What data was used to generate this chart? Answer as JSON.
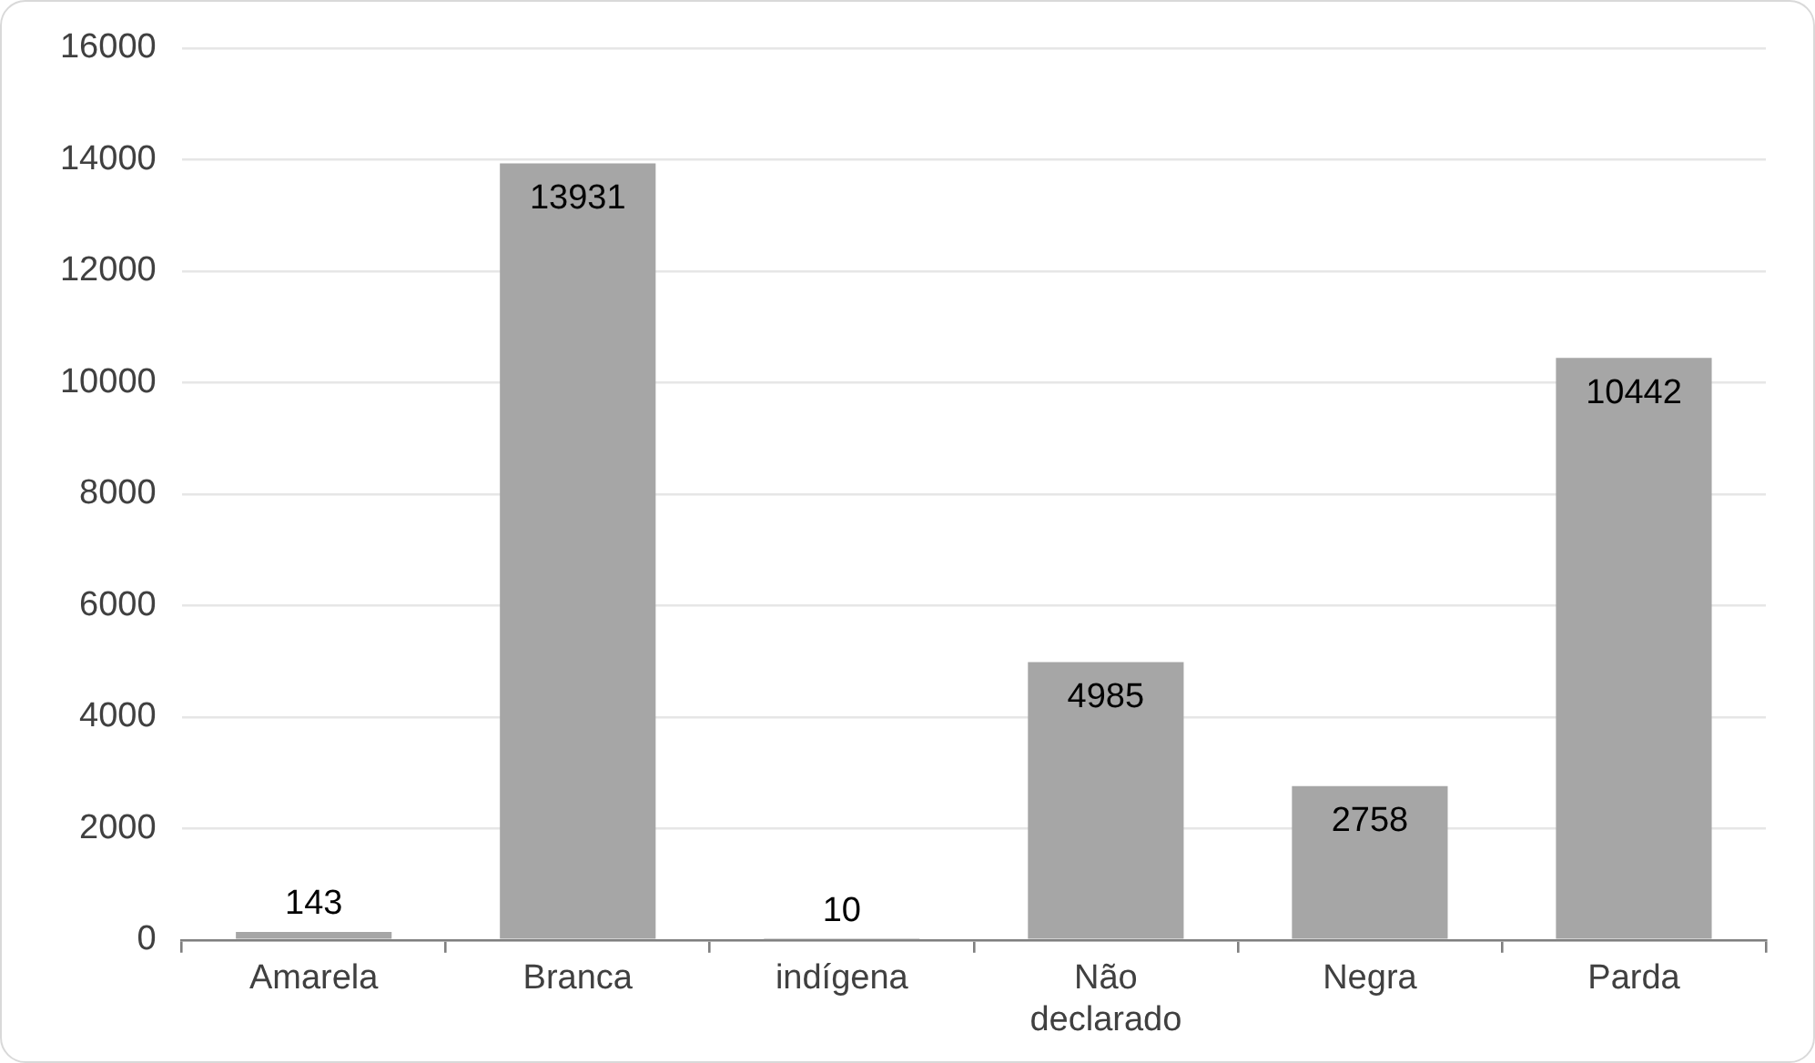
{
  "chart_data": {
    "type": "bar",
    "categories": [
      "Amarela",
      "Branca",
      "indígena",
      "Não declarado",
      "Negra",
      "Parda"
    ],
    "values": [
      143,
      13931,
      10,
      4985,
      2758,
      10442
    ],
    "color": "#a6a6a6",
    "ylim": [
      0,
      16000
    ],
    "yticks": [
      0,
      2000,
      4000,
      6000,
      8000,
      10000,
      12000,
      14000,
      16000
    ],
    "grid": "y",
    "data_labels": true,
    "legend": false
  }
}
